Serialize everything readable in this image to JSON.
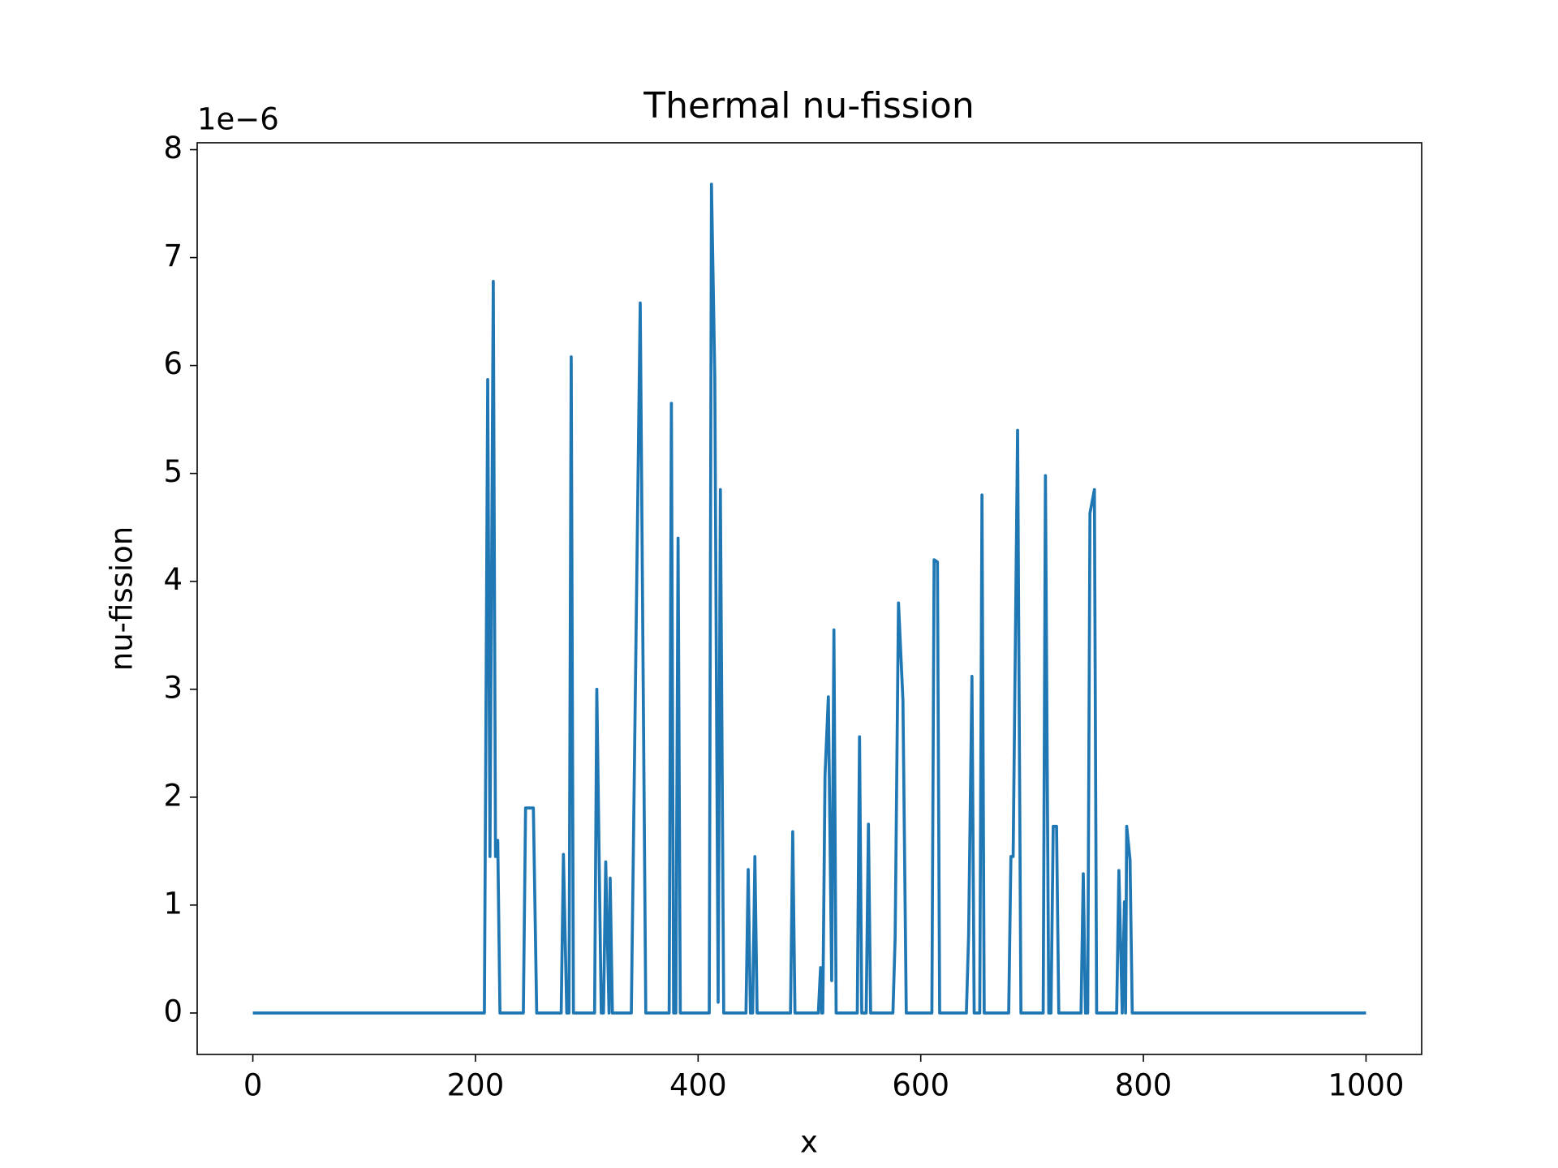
{
  "chart_data": {
    "type": "line",
    "title": "Thermal nu-fission",
    "x_label": "x",
    "y_label": "nu-fission",
    "y_offset_label": "1e−6",
    "color": "#1f77b4",
    "x": [
      0,
      208,
      211,
      213,
      216,
      218,
      220,
      222,
      243,
      245,
      252,
      255,
      277,
      279,
      282,
      284,
      286,
      288,
      307,
      309,
      313,
      315,
      317,
      320,
      321,
      323,
      340,
      348,
      353,
      374,
      376,
      378,
      380,
      382,
      384,
      410,
      412,
      415,
      418,
      420,
      423,
      443,
      445,
      447,
      449,
      451,
      453,
      483,
      485,
      487,
      508,
      510,
      511,
      512,
      514,
      517,
      520,
      522,
      524,
      543,
      545,
      547,
      551,
      553,
      555,
      575,
      577,
      580,
      584,
      587,
      610,
      612,
      615,
      617,
      641,
      643,
      646,
      648,
      653,
      655,
      657,
      679,
      681,
      683,
      687,
      690,
      710,
      712,
      715,
      717,
      719,
      722,
      724,
      744,
      746,
      748,
      750,
      752,
      756,
      758,
      776,
      778,
      781,
      783,
      784,
      785,
      788,
      790,
      1000
    ],
    "values": [
      0,
      0,
      5.87,
      1.45,
      6.78,
      1.45,
      1.6,
      0,
      0,
      1.9,
      1.9,
      0,
      0,
      1.47,
      0,
      0,
      6.08,
      0,
      0,
      3.0,
      0,
      0,
      1.4,
      0,
      1.25,
      0,
      0,
      6.58,
      0,
      0,
      5.65,
      0,
      0,
      4.4,
      0,
      0,
      7.68,
      5.88,
      0.1,
      4.85,
      0,
      0,
      1.33,
      0,
      0,
      1.45,
      0,
      0,
      1.68,
      0,
      0,
      0.42,
      0,
      0,
      2.2,
      2.93,
      0.3,
      3.55,
      0,
      0,
      2.56,
      0,
      0,
      1.75,
      0,
      0,
      0.7,
      3.8,
      2.9,
      0,
      0,
      4.2,
      4.18,
      0,
      0,
      0.72,
      3.12,
      0,
      0,
      4.8,
      0,
      0,
      1.45,
      1.45,
      5.4,
      0,
      0,
      4.98,
      0,
      0,
      1.73,
      1.73,
      0,
      0,
      1.29,
      0,
      0,
      4.63,
      4.85,
      0,
      0,
      1.32,
      0,
      1.03,
      0,
      1.73,
      1.42,
      0,
      0
    ],
    "xlim": [
      -50,
      1050
    ],
    "ylim": [
      -0.384,
      8.064
    ],
    "xticks": [
      0,
      200,
      400,
      600,
      800,
      1000
    ],
    "yticks": [
      0,
      1,
      2,
      3,
      4,
      5,
      6,
      7,
      8
    ]
  }
}
